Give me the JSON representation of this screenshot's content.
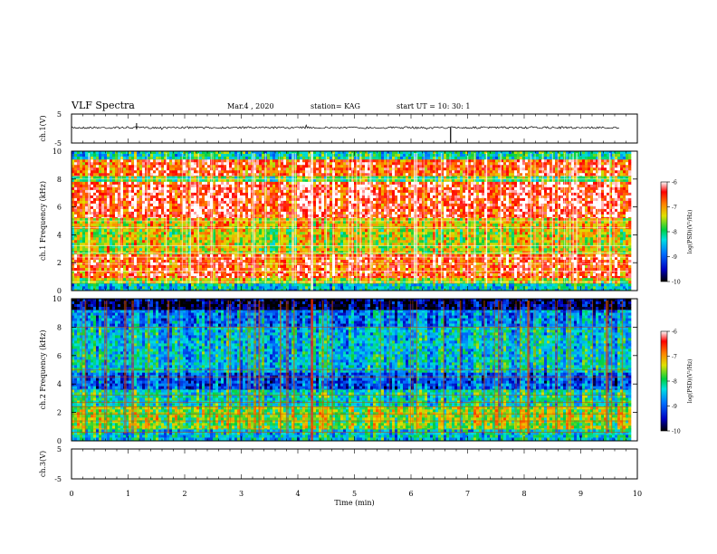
{
  "header": {
    "title": "VLF Spectra",
    "date": "Mar.4 , 2020",
    "station": "station= KAG",
    "start": "start UT = 10: 30: 1"
  },
  "chart_data": [
    {
      "type": "line",
      "panel": "ch1-waveform",
      "ylabel": "ch.1(V)",
      "ylim": [
        -5,
        5
      ],
      "yticks": [
        "5",
        "-5"
      ],
      "baseline": 0
    },
    {
      "type": "heatmap",
      "panel": "ch1-spectrogram",
      "ylabel": "ch.1 Frequency (kHz)",
      "ylim": [
        0,
        10
      ],
      "yticks": [
        "0",
        "2",
        "4",
        "6",
        "8",
        "10"
      ],
      "colorbar": {
        "label": "log(PSD)(V²/Hz)",
        "range": [
          -10,
          -6
        ],
        "ticks": [
          "-6",
          "-7",
          "-8",
          "-9",
          "-10"
        ]
      },
      "bands": [
        {
          "f0": 9.4,
          "f1": 10.0,
          "level": -8.2
        },
        {
          "f0": 8.2,
          "f1": 9.4,
          "level": -6.6
        },
        {
          "f0": 7.8,
          "f1": 8.2,
          "level": -7.8
        },
        {
          "f0": 5.2,
          "f1": 7.8,
          "level": -6.4
        },
        {
          "f0": 4.4,
          "f1": 5.2,
          "level": -7.2
        },
        {
          "f0": 2.6,
          "f1": 4.4,
          "level": -7.4
        },
        {
          "f0": 0.9,
          "f1": 2.6,
          "level": -6.6
        },
        {
          "f0": 0.5,
          "f1": 0.9,
          "level": -7.4
        },
        {
          "f0": 0.0,
          "f1": 0.5,
          "level": -8.4
        }
      ]
    },
    {
      "type": "heatmap",
      "panel": "ch2-spectrogram",
      "ylabel": "ch.2 Frequency (kHz)",
      "ylim": [
        0,
        10
      ],
      "yticks": [
        "0",
        "2",
        "4",
        "6",
        "8",
        "10"
      ],
      "colorbar": {
        "label": "log(PSD)(V²/Hz)",
        "range": [
          -10,
          -6
        ],
        "ticks": [
          "-6",
          "-7",
          "-8",
          "-9",
          "-10"
        ]
      },
      "bands": [
        {
          "f0": 9.2,
          "f1": 10.0,
          "level": -9.8
        },
        {
          "f0": 8.0,
          "f1": 9.2,
          "level": -8.8
        },
        {
          "f0": 4.8,
          "f1": 8.0,
          "level": -8.4
        },
        {
          "f0": 3.6,
          "f1": 4.8,
          "level": -9.0
        },
        {
          "f0": 2.4,
          "f1": 3.6,
          "level": -8.2
        },
        {
          "f0": 0.8,
          "f1": 2.4,
          "level": -7.6
        },
        {
          "f0": 0.0,
          "f1": 0.8,
          "level": -8.4
        }
      ]
    },
    {
      "type": "line",
      "panel": "ch3-waveform",
      "ylabel": "ch.3(V)",
      "ylim": [
        -5,
        5
      ],
      "yticks": [
        "5",
        "-5"
      ]
    }
  ],
  "xaxis": {
    "label": "Time (min)",
    "xlim": [
      0,
      10
    ],
    "ticks": [
      "0",
      "1",
      "2",
      "3",
      "4",
      "5",
      "6",
      "7",
      "8",
      "9",
      "10"
    ],
    "data_end": 9.85
  }
}
